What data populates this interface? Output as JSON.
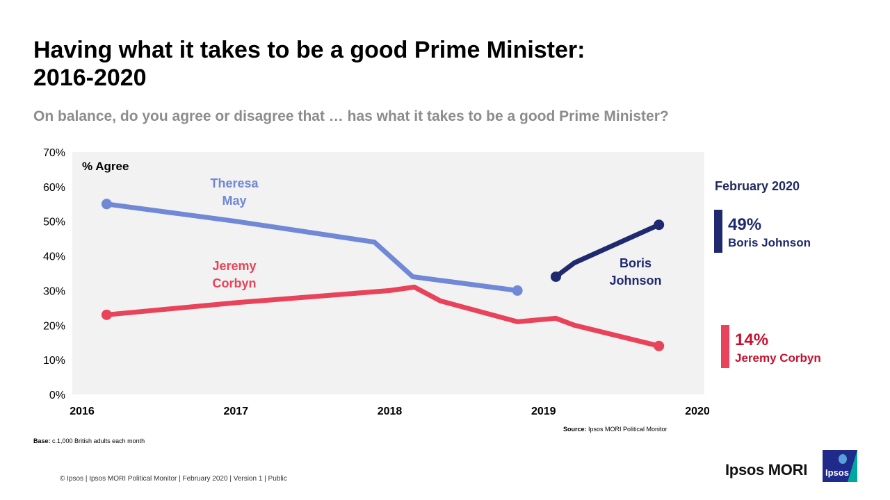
{
  "title_line1": "Having what it takes to be a good Prime Minister:",
  "title_line2": "2016-2020",
  "subtitle": "On balance, do you agree or disagree that … has what it takes to be a good Prime Minister?",
  "chart_data": {
    "type": "line",
    "ylabel": "% Agree",
    "ylim": [
      0,
      70
    ],
    "yticks": [
      "0%",
      "10%",
      "20%",
      "30%",
      "40%",
      "50%",
      "60%",
      "70%"
    ],
    "xlim": [
      2016,
      2020
    ],
    "xticks": [
      "2016",
      "2017",
      "2018",
      "2019",
      "2020"
    ],
    "grid": false,
    "series": [
      {
        "name": "Theresa May",
        "label_lines": [
          "Theresa",
          "May"
        ],
        "color": "#7088d6",
        "x": [
          2016.16,
          2017.0,
          2017.9,
          2018.15,
          2018.83
        ],
        "y": [
          55,
          50,
          44,
          34,
          30
        ]
      },
      {
        "name": "Jeremy Corbyn",
        "label_lines": [
          "Jeremy",
          "Corbyn"
        ],
        "color": "#e8435a",
        "x": [
          2016.16,
          2017.0,
          2018.0,
          2018.16,
          2018.33,
          2018.83,
          2019.08,
          2019.2,
          2019.75
        ],
        "y": [
          23,
          26.5,
          30,
          31,
          27,
          21,
          22,
          20,
          14
        ]
      },
      {
        "name": "Boris Johnson",
        "label_lines": [
          "Boris",
          "Johnson"
        ],
        "color": "#1f2a6e",
        "x": [
          2019.08,
          2019.2,
          2019.75
        ],
        "y": [
          34,
          38,
          49
        ]
      }
    ]
  },
  "side_panel": {
    "date": "February 2020",
    "items": [
      {
        "pct": "49%",
        "name": "Boris Johnson",
        "color": "#1f2a6e"
      },
      {
        "pct": "14%",
        "name": "Jeremy Corbyn",
        "color": "#c8102e",
        "bar_color": "#e8435a"
      }
    ]
  },
  "source_label": "Source:",
  "source_text": "Ipsos MORI Political Monitor",
  "base_label": "Base:",
  "base_text": "c.1,000 British adults each month",
  "footer": "© Ipsos | Ipsos MORI Political Monitor | February 2020 | Version 1 | Public",
  "brand": "Ipsos MORI",
  "logo_text": "Ipsos"
}
